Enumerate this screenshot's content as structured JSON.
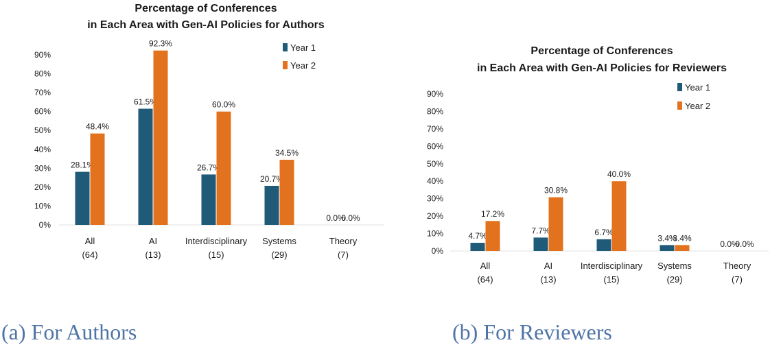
{
  "colors": {
    "year1": "#1f5a78",
    "year2": "#e3721f",
    "axis": "#333333"
  },
  "captions": {
    "a": "(a) For Authors",
    "b": "(b) For Reviewers"
  },
  "chart_data": [
    {
      "type": "bar",
      "title": [
        "Percentage of Conferences",
        "in Each Area with Gen-AI Policies for Authors"
      ],
      "categories": [
        [
          "All",
          "(64)"
        ],
        [
          "AI",
          "(13)"
        ],
        [
          "Interdisciplinary",
          "(15)"
        ],
        [
          "Systems",
          "(29)"
        ],
        [
          "Theory",
          "(7)"
        ]
      ],
      "series": [
        {
          "name": "Year 1",
          "values": [
            28.1,
            61.5,
            26.7,
            20.7,
            0.0
          ]
        },
        {
          "name": "Year 2",
          "values": [
            48.4,
            92.3,
            60.0,
            34.5,
            0.0
          ]
        }
      ],
      "ylim": [
        0,
        90
      ],
      "yticks": [
        "0%",
        "10%",
        "20%",
        "30%",
        "40%",
        "50%",
        "60%",
        "70%",
        "80%",
        "90%"
      ],
      "legend_position": "top-right",
      "value_labels": [
        [
          "28.1%",
          "61.5%",
          "26.7%",
          "20.7%",
          "0.0%"
        ],
        [
          "48.4%",
          "92.3%",
          "60.0%",
          "34.5%",
          "0.0%"
        ]
      ]
    },
    {
      "type": "bar",
      "title": [
        "Percentage of Conferences",
        "in Each Area with Gen-AI Policies for Reviewers"
      ],
      "categories": [
        [
          "All",
          "(64)"
        ],
        [
          "AI",
          "(13)"
        ],
        [
          "Interdisciplinary",
          "(15)"
        ],
        [
          "Systems",
          "(29)"
        ],
        [
          "Theory",
          "(7)"
        ]
      ],
      "series": [
        {
          "name": "Year 1",
          "values": [
            4.7,
            7.7,
            6.7,
            3.4,
            0.0
          ]
        },
        {
          "name": "Year 2",
          "values": [
            17.2,
            30.8,
            40.0,
            3.4,
            0.0
          ]
        }
      ],
      "ylim": [
        0,
        90
      ],
      "yticks": [
        "0%",
        "10%",
        "20%",
        "30%",
        "40%",
        "50%",
        "60%",
        "70%",
        "80%",
        "90%"
      ],
      "legend_position": "top-right",
      "value_labels": [
        [
          "4.7%",
          "7.7%",
          "6.7%",
          "3.4%",
          "0.0%"
        ],
        [
          "17.2%",
          "30.8%",
          "40.0%",
          "3.4%",
          "0.0%"
        ]
      ]
    }
  ]
}
